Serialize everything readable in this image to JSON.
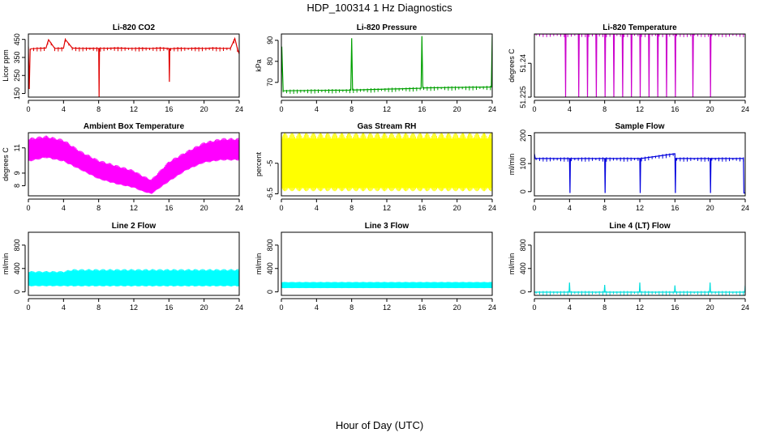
{
  "figure": {
    "title": "HDP_100314  1 Hz Diagnostics",
    "xlabel": "Hour of Day (UTC)"
  },
  "chart_data": [
    {
      "type": "line",
      "title": "Li-820 CO2",
      "xlabel": "",
      "ylabel": "Licor ppm",
      "color": "#e00000",
      "xlim": [
        0,
        24
      ],
      "ylim": [
        130,
        480
      ],
      "x_ticks": [
        0,
        4,
        8,
        12,
        16,
        20,
        24
      ],
      "y_ticks": [
        150,
        250,
        350,
        450
      ],
      "series": [
        {
          "x": [
            0,
            0.1,
            0.2,
            0.3,
            1,
            2,
            2.3,
            3,
            4,
            4.2,
            5,
            6,
            7,
            8,
            8.05,
            8.1,
            9,
            10,
            11,
            12,
            13,
            14,
            15,
            16,
            16.05,
            16.1,
            17,
            18,
            19,
            20,
            21,
            22,
            23,
            23.5,
            23.8,
            24
          ],
          "y": [
            410,
            175,
            395,
            398,
            400,
            402,
            448,
            400,
            401,
            450,
            402,
            400,
            401,
            400,
            130,
            400,
            401,
            402,
            401,
            400,
            401,
            400,
            402,
            400,
            215,
            398,
            401,
            400,
            401,
            400,
            402,
            400,
            401,
            455,
            398,
            370
          ]
        }
      ]
    },
    {
      "type": "line",
      "title": "Li-820 Pressure",
      "xlabel": "",
      "ylabel": "kPa",
      "color": "#00a000",
      "xlim": [
        0,
        24
      ],
      "ylim": [
        63,
        93
      ],
      "x_ticks": [
        0,
        4,
        8,
        12,
        16,
        20,
        24
      ],
      "y_ticks": [
        70,
        80,
        90
      ],
      "series": [
        {
          "x": [
            0,
            0.05,
            0.2,
            0.3,
            4,
            7.9,
            8,
            8.1,
            12,
            15.9,
            16,
            16.1,
            20,
            23.9,
            24
          ],
          "y": [
            66,
            87,
            66,
            66,
            66.2,
            66.3,
            91,
            66.4,
            66.8,
            67.2,
            92,
            67.4,
            67.6,
            67.8,
            92
          ]
        }
      ]
    },
    {
      "type": "line",
      "title": "Li-820 Temperature",
      "xlabel": "",
      "ylabel": "degrees C",
      "color": "#cc00cc",
      "xlim": [
        0,
        24
      ],
      "ylim": [
        51.225,
        51.253
      ],
      "x_ticks": [
        0,
        4,
        8,
        12,
        16,
        20,
        24
      ],
      "y_ticks": [
        51.225,
        51.24
      ],
      "series": [
        {
          "x": [
            0,
            3.5,
            3.55,
            3.6,
            5,
            5.05,
            5.1,
            6,
            6.05,
            6.1,
            7,
            7.05,
            7.1,
            8,
            8.05,
            8.1,
            9,
            9.05,
            9.1,
            10,
            10.05,
            10.1,
            11,
            11.05,
            11.1,
            12,
            12.05,
            12.1,
            13,
            13.05,
            13.1,
            14,
            14.05,
            14.1,
            15,
            15.05,
            15.1,
            16,
            16.05,
            16.1,
            18,
            18.05,
            18.1,
            20,
            20.05,
            20.1,
            24
          ],
          "y": [
            51.253,
            51.253,
            51.225,
            51.253,
            51.253,
            51.225,
            51.253,
            51.253,
            51.225,
            51.253,
            51.253,
            51.225,
            51.253,
            51.253,
            51.225,
            51.253,
            51.253,
            51.225,
            51.253,
            51.253,
            51.225,
            51.253,
            51.253,
            51.225,
            51.253,
            51.253,
            51.225,
            51.253,
            51.253,
            51.225,
            51.253,
            51.253,
            51.225,
            51.253,
            51.253,
            51.225,
            51.253,
            51.253,
            51.225,
            51.253,
            51.253,
            51.225,
            51.253,
            51.253,
            51.225,
            51.253,
            51.253
          ]
        }
      ]
    },
    {
      "type": "area",
      "title": "Ambient Box Temperature",
      "xlabel": "",
      "ylabel": "degrees C",
      "color": "#ff00ff",
      "xlim": [
        0,
        24
      ],
      "ylim": [
        7.2,
        12.2
      ],
      "x_ticks": [
        0,
        4,
        8,
        12,
        16,
        20,
        24
      ],
      "y_ticks": [
        8,
        9,
        11
      ],
      "series": [
        {
          "name": "upper",
          "x": [
            0,
            2,
            4,
            6,
            8,
            10,
            12,
            13,
            14,
            16,
            18,
            20,
            22,
            24
          ],
          "y": [
            11.6,
            11.8,
            11.5,
            10.6,
            9.9,
            9.5,
            9.1,
            8.7,
            8.4,
            9.8,
            10.6,
            11.3,
            11.6,
            11.6
          ]
        },
        {
          "name": "lower",
          "x": [
            0,
            2,
            4,
            6,
            8,
            10,
            12,
            13,
            14,
            16,
            18,
            20,
            22,
            24
          ],
          "y": [
            10.0,
            10.3,
            10.0,
            9.3,
            8.6,
            8.2,
            7.9,
            7.6,
            7.4,
            8.4,
            9.3,
            9.9,
            10.1,
            10.1
          ]
        }
      ]
    },
    {
      "type": "area",
      "title": "Gas Stream RH",
      "xlabel": "",
      "ylabel": "percent",
      "color": "#ffff00",
      "xlim": [
        0,
        24
      ],
      "ylim": [
        -6.6,
        -3.5
      ],
      "x_ticks": [
        0,
        4,
        8,
        12,
        16,
        20,
        24
      ],
      "y_ticks": [
        -6.5,
        -5.0
      ],
      "series": [
        {
          "name": "upper",
          "x": [
            0,
            24
          ],
          "y": [
            -3.8,
            -3.8
          ]
        },
        {
          "name": "lower",
          "x": [
            0,
            24
          ],
          "y": [
            -6.2,
            -6.2
          ]
        }
      ]
    },
    {
      "type": "line",
      "title": "Sample Flow",
      "xlabel": "",
      "ylabel": "ml/min",
      "color": "#0000dd",
      "xlim": [
        0,
        24
      ],
      "ylim": [
        -15,
        210
      ],
      "x_ticks": [
        0,
        4,
        8,
        12,
        16,
        20,
        24
      ],
      "y_ticks": [
        0,
        100,
        200
      ],
      "series": [
        {
          "x": [
            0,
            0.1,
            0.3,
            4,
            4.05,
            4.1,
            8,
            8.05,
            8.1,
            12,
            12.05,
            12.1,
            16,
            16.05,
            16.1,
            20,
            20.05,
            20.1,
            23.8,
            23.85,
            24
          ],
          "y": [
            135,
            118,
            118,
            118,
            -5,
            118,
            118,
            -5,
            118,
            118,
            -5,
            118,
            135,
            -5,
            118,
            118,
            -5,
            118,
            118,
            -5,
            -5
          ]
        }
      ]
    },
    {
      "type": "area",
      "title": "Line 2 Flow",
      "xlabel": "",
      "ylabel": "ml/min",
      "color": "#00ffff",
      "xlim": [
        0,
        24
      ],
      "ylim": [
        -60,
        1020
      ],
      "x_ticks": [
        0,
        4,
        8,
        12,
        16,
        20,
        24
      ],
      "y_ticks": [
        0,
        400,
        800
      ],
      "series": [
        {
          "name": "upper",
          "x": [
            0,
            4,
            5,
            24
          ],
          "y": [
            330,
            330,
            360,
            360
          ]
        },
        {
          "name": "lower",
          "x": [
            0,
            24
          ],
          "y": [
            110,
            110
          ]
        }
      ]
    },
    {
      "type": "area",
      "title": "Line 3 Flow",
      "xlabel": "",
      "ylabel": "ml/min",
      "color": "#00ffff",
      "xlim": [
        0,
        24
      ],
      "ylim": [
        -60,
        1020
      ],
      "x_ticks": [
        0,
        4,
        8,
        12,
        16,
        20,
        24
      ],
      "y_ticks": [
        0,
        400,
        800
      ],
      "series": [
        {
          "name": "upper",
          "x": [
            0,
            24
          ],
          "y": [
            160,
            160
          ]
        },
        {
          "name": "lower",
          "x": [
            0,
            24
          ],
          "y": [
            70,
            70
          ]
        }
      ]
    },
    {
      "type": "line",
      "title": "Line 4 (LT) Flow",
      "xlabel": "",
      "ylabel": "ml/min",
      "color": "#00dddd",
      "xlim": [
        0,
        24
      ],
      "ylim": [
        -60,
        1020
      ],
      "x_ticks": [
        0,
        4,
        8,
        12,
        16,
        20,
        24
      ],
      "y_ticks": [
        0,
        400,
        800
      ],
      "series": [
        {
          "x": [
            0,
            3.95,
            4,
            4.05,
            7.95,
            8,
            8.05,
            11.95,
            12,
            12.05,
            15.95,
            16,
            16.05,
            19.95,
            20,
            20.05,
            23.95,
            24
          ],
          "y": [
            -5,
            -5,
            160,
            -5,
            -5,
            120,
            -5,
            -5,
            160,
            -5,
            -5,
            110,
            -5,
            -5,
            160,
            -5,
            -5,
            110
          ]
        }
      ]
    }
  ]
}
